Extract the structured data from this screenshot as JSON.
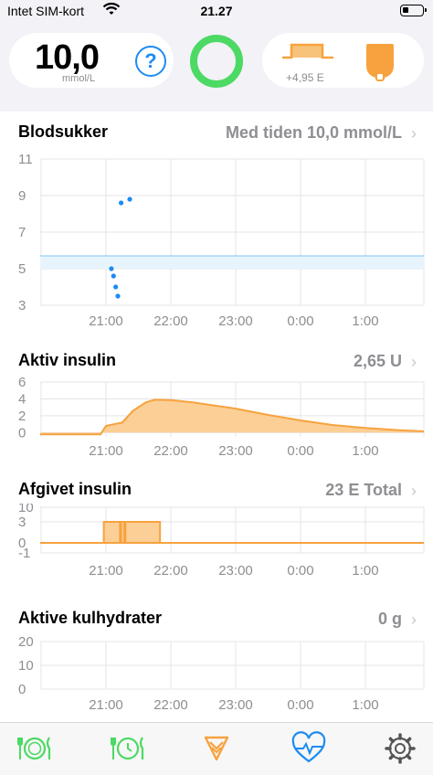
{
  "status_bar": {
    "carrier": "Intet SIM-kort",
    "time": "21.27"
  },
  "hud": {
    "glucose_value": "10,0",
    "glucose_unit": "mmol/L",
    "help_symbol": "?",
    "basal_label": "+4,95 E",
    "colors": {
      "loop": "#4cd964",
      "help": "#1c8cf2",
      "insulin": "#f7a23e"
    }
  },
  "charts": {
    "glucose": {
      "title": "Blodsukker",
      "summary": "Med tiden 10,0 mmol/L",
      "chevron": "›",
      "chart_data": {
        "type": "scatter",
        "y_ticks": [
          "11",
          "9",
          "7",
          "5",
          "3"
        ],
        "x_ticks": [
          "21:00",
          "22:00",
          "23:00",
          "0:00",
          "1:00"
        ],
        "ylim": [
          3,
          11
        ],
        "target_range": [
          5,
          5.7
        ],
        "points": [
          {
            "t": "21:05",
            "y": 5.0
          },
          {
            "t": "21:07",
            "y": 4.6
          },
          {
            "t": "21:09",
            "y": 4.0
          },
          {
            "t": "21:11",
            "y": 3.5
          },
          {
            "t": "21:14",
            "y": 8.6
          },
          {
            "t": "21:22",
            "y": 8.8
          }
        ]
      }
    },
    "active_insulin": {
      "title": "Aktiv insulin",
      "summary": "2,65 U",
      "chevron": "›",
      "chart_data": {
        "type": "area",
        "y_ticks": [
          "6",
          "4",
          "2",
          "0"
        ],
        "x_ticks": [
          "21:00",
          "22:00",
          "23:00",
          "0:00",
          "1:00"
        ],
        "ylim": [
          -0.5,
          6
        ],
        "points": [
          {
            "t": "19:55",
            "y": -0.2
          },
          {
            "t": "20:55",
            "y": -0.2
          },
          {
            "t": "21:00",
            "y": 0.8
          },
          {
            "t": "21:15",
            "y": 1.2
          },
          {
            "t": "21:25",
            "y": 2.6
          },
          {
            "t": "21:37",
            "y": 3.6
          },
          {
            "t": "21:45",
            "y": 3.9
          },
          {
            "t": "22:00",
            "y": 3.85
          },
          {
            "t": "22:20",
            "y": 3.6
          },
          {
            "t": "23:00",
            "y": 2.85
          },
          {
            "t": "23:30",
            "y": 2.1
          },
          {
            "t": "0:00",
            "y": 1.45
          },
          {
            "t": "0:30",
            "y": 0.9
          },
          {
            "t": "1:00",
            "y": 0.55
          },
          {
            "t": "1:30",
            "y": 0.3
          },
          {
            "t": "2:00",
            "y": 0.15
          }
        ]
      }
    },
    "delivered_insulin": {
      "title": "Afgivet insulin",
      "summary": "23 E Total",
      "chevron": "›",
      "chart_data": {
        "type": "bar",
        "y_ticks": [
          "10",
          "3",
          "0",
          "-1"
        ],
        "x_ticks": [
          "21:00",
          "22:00",
          "23:00",
          "0:00",
          "1:00"
        ],
        "baseline": 0,
        "bars": [
          {
            "from": "20:58",
            "to": "21:13",
            "value": 3
          },
          {
            "from": "21:14",
            "to": "21:17",
            "value": 3
          },
          {
            "from": "21:18",
            "to": "21:50",
            "value": 3
          }
        ]
      }
    },
    "carbs": {
      "title": "Aktive kulhydrater",
      "summary": "0 g",
      "chevron": "›",
      "chart_data": {
        "type": "area",
        "y_ticks": [
          "20",
          "10",
          "0"
        ],
        "x_ticks": [
          "21:00",
          "22:00",
          "23:00",
          "0:00",
          "1:00"
        ],
        "ylim": [
          0,
          20
        ],
        "points": []
      }
    }
  },
  "tab_bar": {
    "items": [
      {
        "name": "carbs-tab",
        "icon": "plate-fork-knife-icon",
        "color": "#4cd964"
      },
      {
        "name": "pre-meal-tab",
        "icon": "plate-clock-icon",
        "color": "#4cd964"
      },
      {
        "name": "bolus-tab",
        "icon": "bolus-triangle-icon",
        "color": "#f7a23e"
      },
      {
        "name": "workout-tab",
        "icon": "heart-pulse-icon",
        "color": "#1c8cf2"
      },
      {
        "name": "settings-tab",
        "icon": "gear-icon",
        "color": "#555555"
      }
    ]
  }
}
